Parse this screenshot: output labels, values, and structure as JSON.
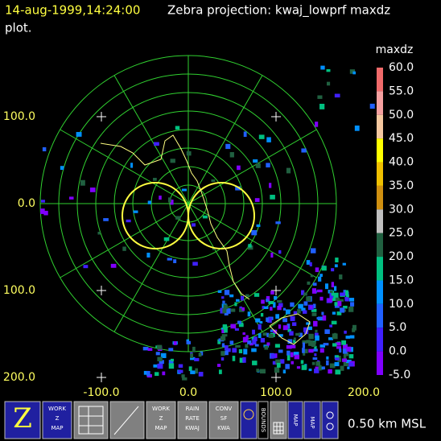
{
  "header": {
    "time": "14-aug-1999,14:24:00",
    "title": "Zebra projection: kwaj_lowprf maxdz",
    "title_cont": "plot."
  },
  "y_labels": [
    "100.0",
    "0.0",
    "100.0",
    "200.0"
  ],
  "x_labels": [
    "-100.0",
    "0.0",
    "100.0",
    "200.0"
  ],
  "colorbar": {
    "title": "maxdz",
    "labels": [
      "60.0",
      "55.0",
      "50.0",
      "45.0",
      "40.0",
      "35.0",
      "30.0",
      "25.0",
      "20.0",
      "15.0",
      "10.0",
      "5.0",
      "0.0",
      "-5.0"
    ],
    "colors": [
      "#f06a6a",
      "#f5a0a0",
      "#f6c8a0",
      "#ffff00",
      "#f0c000",
      "#d09010",
      "#c0c0c0",
      "#206040",
      "#00c080",
      "#0090ff",
      "#2060ff",
      "#4020ff",
      "#8000ff"
    ]
  },
  "icons": {
    "work_z_map": [
      "WORK",
      "Z",
      "MAP"
    ],
    "work_z_map2": [
      "WORK",
      "Z",
      "MAP"
    ],
    "rain_rate": [
      "RAIN",
      "RATE",
      "KWAJ"
    ],
    "conv": [
      "CONV",
      "SF",
      "KWA"
    ],
    "bounds": "BOUNDS",
    "map": "MAP",
    "map2": "MAP"
  },
  "footer": "0.50 km MSL"
}
